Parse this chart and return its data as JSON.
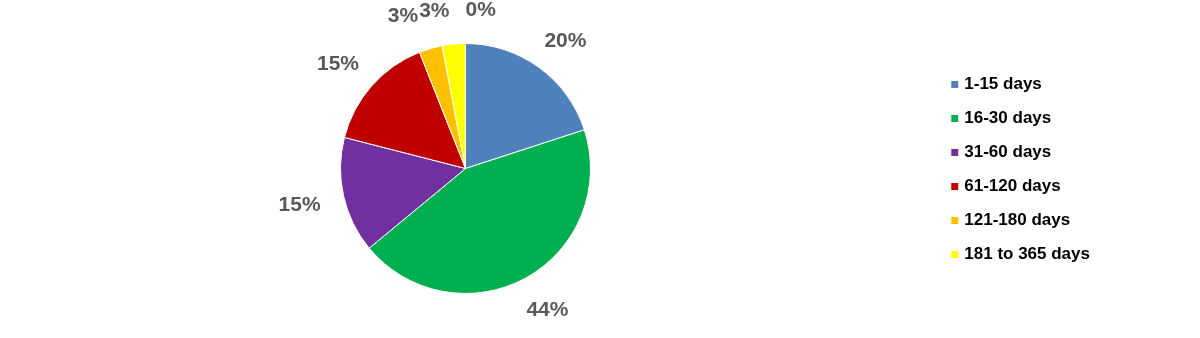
{
  "chart_data": {
    "type": "pie",
    "categories": [
      "1-15 days",
      "16-30 days",
      "31-60 days",
      "61-120 days",
      "121-180 days",
      "181 to 365 days",
      null
    ],
    "values": [
      20,
      44,
      15,
      15,
      3,
      3,
      0
    ],
    "value_labels": [
      "20%",
      "44%",
      "15%",
      "15%",
      "3%",
      "3%",
      "0%"
    ],
    "colors": [
      "#4f81bd",
      "#00b050",
      "#7030a0",
      "#c00000",
      "#ffc000",
      "#ffff00",
      "#a5a5a5"
    ],
    "legend": "right"
  }
}
